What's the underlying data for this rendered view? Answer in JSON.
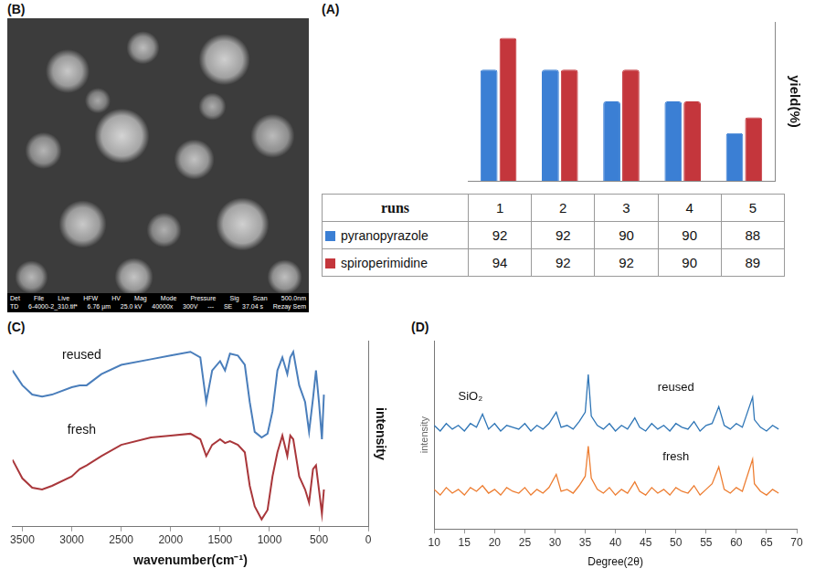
{
  "image_panel": {
    "panel": "(B)",
    "type": "image",
    "info_headers": [
      "Det",
      "File",
      "Live",
      "HFW",
      "HV",
      "Mag",
      "Mode",
      "Pressure",
      "Sig",
      "Scan"
    ],
    "scale_bar": "500.0nm",
    "info_values": [
      "TD",
      "6-4000-2_310.tif*",
      "6.76 µm",
      "25.0 kV",
      "40000x",
      "300V",
      "---",
      "SE",
      "37.04 s",
      "Rezay Sem"
    ]
  },
  "chart_data": [
    {
      "panel": "(A)",
      "type": "bar",
      "xlabel": "runs",
      "ylabel": "yield(%)",
      "categories": [
        "1",
        "2",
        "3",
        "4",
        "5"
      ],
      "series": [
        {
          "name": "pyranopyrazole",
          "color": "#3b7fd4",
          "values": [
            92,
            92,
            90,
            90,
            88
          ]
        },
        {
          "name": "spiroperimidine",
          "color": "#c4363c",
          "values": [
            94,
            92,
            92,
            90,
            89
          ]
        }
      ],
      "ylim": [
        85,
        95
      ],
      "tick_labels": false,
      "data_labels": true,
      "grid": false
    },
    {
      "panel": "(C)",
      "type": "line",
      "xlabel": "wavenumber(cm⁻¹)",
      "ylabel": "intensity",
      "x": [
        3600,
        3500,
        3400,
        3300,
        3200,
        3000,
        2920,
        2850,
        2700,
        2500,
        2200,
        2000,
        1800,
        1700,
        1640,
        1580,
        1500,
        1450,
        1400,
        1320,
        1250,
        1200,
        1150,
        1080,
        1020,
        970,
        920,
        870,
        820,
        790,
        760,
        700,
        640,
        600,
        560,
        530,
        500,
        470,
        450
      ],
      "series": [
        {
          "name": "reused",
          "color": "#4a7ebb",
          "values": [
            84,
            76,
            71,
            70,
            71,
            75,
            76,
            76,
            82,
            87,
            90,
            92,
            94,
            91,
            67,
            84,
            89,
            84,
            93,
            92,
            87,
            67,
            51,
            48,
            50,
            62,
            84,
            91,
            82,
            91,
            94,
            76,
            67,
            51,
            69,
            84,
            67,
            47,
            71
          ]
        },
        {
          "name": "fresh",
          "color": "#a9373b",
          "values": [
            36,
            26,
            21,
            20,
            22,
            27,
            31,
            33,
            38,
            44,
            48,
            49,
            50,
            47,
            38,
            44,
            47,
            45,
            46,
            44,
            40,
            22,
            11,
            4,
            9,
            27,
            40,
            49,
            38,
            49,
            47,
            27,
            20,
            13,
            31,
            33,
            20,
            7,
            20
          ]
        }
      ],
      "xlim": [
        3600,
        0
      ],
      "xticks": [
        3500,
        3000,
        2500,
        2000,
        1500,
        1000,
        500,
        0
      ],
      "ylim": [
        0,
        100
      ],
      "tick_labels": "x",
      "grid": false,
      "annotations": [
        {
          "text": "reused",
          "x": 2900,
          "y": 92
        },
        {
          "text": "fresh",
          "x": 2900,
          "y": 52
        }
      ]
    },
    {
      "panel": "(D)",
      "type": "line",
      "xlabel": "Degree(2θ)",
      "ylabel": "intensity",
      "x": [
        10,
        11,
        12,
        13,
        14,
        15,
        16,
        17,
        18,
        19,
        20,
        21,
        22,
        23,
        24,
        25,
        26,
        27,
        28,
        29,
        30.2,
        31,
        32,
        33,
        34,
        35,
        35.5,
        36,
        37,
        38,
        39,
        40,
        41,
        42,
        43.2,
        44,
        45,
        46,
        47,
        48,
        49,
        50,
        51,
        52,
        53,
        54,
        55,
        56,
        57.1,
        58,
        59,
        60,
        61,
        62.7,
        63,
        64,
        65,
        66,
        67
      ],
      "series": [
        {
          "name": "reused",
          "color": "#2e75b6",
          "values": [
            55,
            52,
            56,
            53,
            55,
            52,
            56,
            54,
            61,
            53,
            56,
            52,
            55,
            54,
            53,
            56,
            52,
            55,
            53,
            56,
            62,
            54,
            55,
            53,
            57,
            62,
            82,
            60,
            55,
            53,
            56,
            52,
            55,
            53,
            59,
            54,
            52,
            56,
            53,
            55,
            52,
            56,
            54,
            53,
            57,
            52,
            55,
            56,
            65,
            55,
            53,
            56,
            54,
            70,
            58,
            54,
            52,
            55,
            53
          ]
        },
        {
          "name": "fresh",
          "color": "#ed7d31",
          "values": [
            21,
            18,
            22,
            19,
            21,
            18,
            22,
            20,
            23,
            19,
            21,
            18,
            22,
            20,
            19,
            22,
            18,
            21,
            19,
            22,
            29,
            20,
            21,
            19,
            23,
            28,
            44,
            27,
            21,
            19,
            22,
            18,
            21,
            19,
            25,
            20,
            18,
            22,
            19,
            21,
            18,
            22,
            20,
            19,
            23,
            18,
            21,
            24,
            33,
            21,
            19,
            22,
            20,
            37,
            24,
            20,
            18,
            21,
            19
          ]
        }
      ],
      "xlim": [
        10,
        70
      ],
      "xticks": [
        10,
        15,
        20,
        25,
        30,
        35,
        40,
        45,
        50,
        55,
        60,
        65,
        70
      ],
      "ylim": [
        0,
        100
      ],
      "tick_labels": "x",
      "grid": false,
      "annotations": [
        {
          "text": "SiO₂",
          "x": 16,
          "y": 70
        },
        {
          "text": "reused",
          "x": 50,
          "y": 75
        },
        {
          "text": "fresh",
          "x": 50,
          "y": 38
        }
      ]
    }
  ]
}
